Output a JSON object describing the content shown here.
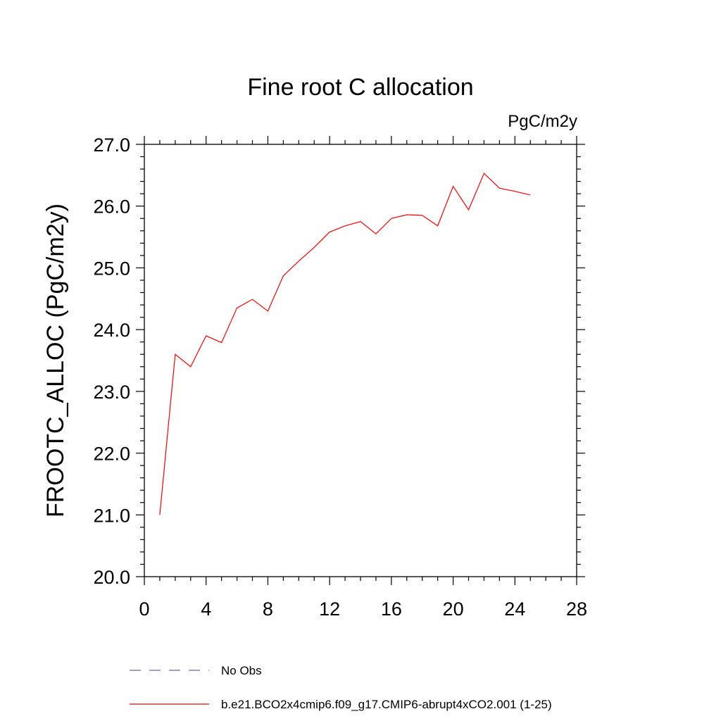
{
  "chart_data": {
    "type": "line",
    "title": "Fine root C allocation",
    "units_label": "PgC/m2y",
    "ylabel": "FROOTC_ALLOC  (PgC/m2y)",
    "xlabel": "",
    "xlim": [
      0,
      28
    ],
    "ylim": [
      20.0,
      27.0
    ],
    "x_ticks": [
      "0",
      "4",
      "8",
      "12",
      "16",
      "20",
      "24",
      "28"
    ],
    "y_ticks": [
      "20.0",
      "21.0",
      "22.0",
      "23.0",
      "24.0",
      "25.0",
      "26.0",
      "27.0"
    ],
    "grid": false,
    "legend_position": "bottom",
    "series": [
      {
        "name": "b.e21.BCO2x4cmip6.f09_g17.CMIP6-abrupt4xCO2.001 (1-25)",
        "color": "#ff0000",
        "style": "solid",
        "x": [
          1,
          2,
          3,
          4,
          5,
          6,
          7,
          8,
          9,
          10,
          11,
          12,
          13,
          14,
          15,
          16,
          17,
          18,
          19,
          20,
          21,
          22,
          23,
          24,
          25
        ],
        "y": [
          21.0,
          23.6,
          23.4,
          23.9,
          23.79,
          24.35,
          24.49,
          24.3,
          24.87,
          25.11,
          25.33,
          25.58,
          25.68,
          25.75,
          25.55,
          25.8,
          25.86,
          25.85,
          25.68,
          26.32,
          25.94,
          26.53,
          26.29,
          26.24,
          26.18
        ]
      }
    ],
    "legend": [
      {
        "label": "No Obs",
        "color": "#6666cc",
        "style": "dashed"
      },
      {
        "label": "b.e21.BCO2x4cmip6.f09_g17.CMIP6-abrupt4xCO2.001 (1-25)",
        "color": "#ff0000",
        "style": "solid"
      }
    ]
  }
}
